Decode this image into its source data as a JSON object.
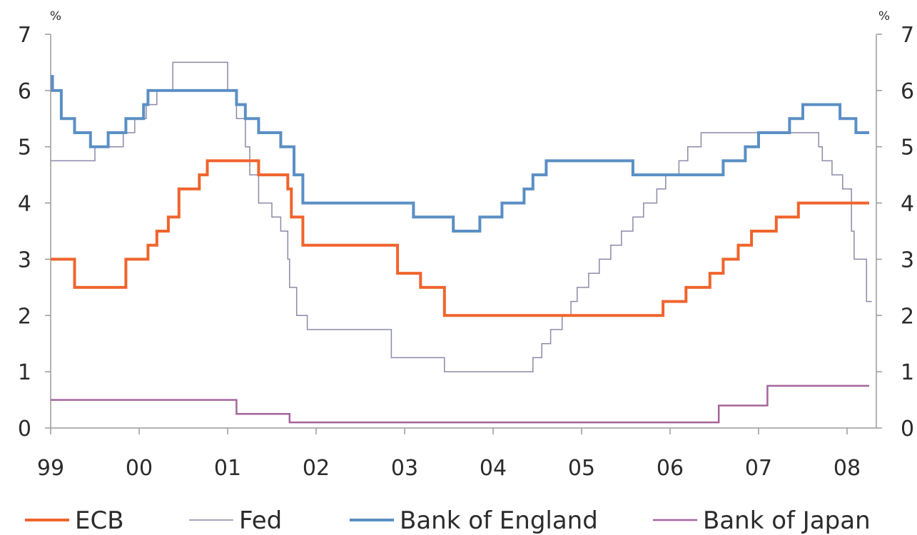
{
  "chart_data": {
    "type": "line",
    "title": "",
    "y_unit_left": "%",
    "y_unit_right": "%",
    "x_ticks": [
      "99",
      "00",
      "01",
      "02",
      "03",
      "04",
      "05",
      "06",
      "07",
      "08"
    ],
    "x_range": [
      1999,
      2008.3
    ],
    "ylim": [
      0,
      7
    ],
    "y_ticks": [
      0,
      1,
      2,
      3,
      4,
      5,
      6,
      7
    ],
    "grid": false,
    "legend_position": "bottom",
    "series": [
      {
        "name": "ECB",
        "color": "#f0642d",
        "points": [
          [
            1999.0,
            3.0
          ],
          [
            1999.27,
            2.5
          ],
          [
            1999.85,
            3.0
          ],
          [
            2000.1,
            3.25
          ],
          [
            2000.2,
            3.5
          ],
          [
            2000.33,
            3.75
          ],
          [
            2000.45,
            4.25
          ],
          [
            2000.68,
            4.5
          ],
          [
            2000.77,
            4.75
          ],
          [
            2001.35,
            4.5
          ],
          [
            2001.68,
            4.25
          ],
          [
            2001.72,
            3.75
          ],
          [
            2001.85,
            3.25
          ],
          [
            2002.92,
            2.75
          ],
          [
            2003.18,
            2.5
          ],
          [
            2003.45,
            2.0
          ],
          [
            2005.92,
            2.25
          ],
          [
            2006.18,
            2.5
          ],
          [
            2006.45,
            2.75
          ],
          [
            2006.6,
            3.0
          ],
          [
            2006.77,
            3.25
          ],
          [
            2006.92,
            3.5
          ],
          [
            2007.2,
            3.75
          ],
          [
            2007.45,
            4.0
          ],
          [
            2008.25,
            4.0
          ]
        ]
      },
      {
        "name": "Fed",
        "color": "#8a8aa8",
        "points": [
          [
            1999.0,
            4.75
          ],
          [
            1999.5,
            5.0
          ],
          [
            1999.82,
            5.25
          ],
          [
            1999.95,
            5.5
          ],
          [
            2000.08,
            5.75
          ],
          [
            2000.2,
            6.0
          ],
          [
            2000.38,
            6.5
          ],
          [
            2001.0,
            6.0
          ],
          [
            2001.1,
            5.5
          ],
          [
            2001.2,
            5.0
          ],
          [
            2001.25,
            4.5
          ],
          [
            2001.35,
            4.0
          ],
          [
            2001.5,
            3.75
          ],
          [
            2001.6,
            3.5
          ],
          [
            2001.68,
            3.0
          ],
          [
            2001.7,
            2.5
          ],
          [
            2001.78,
            2.0
          ],
          [
            2001.9,
            1.75
          ],
          [
            2002.85,
            1.25
          ],
          [
            2003.45,
            1.0
          ],
          [
            2004.45,
            1.25
          ],
          [
            2004.55,
            1.5
          ],
          [
            2004.65,
            1.75
          ],
          [
            2004.78,
            2.0
          ],
          [
            2004.88,
            2.25
          ],
          [
            2004.95,
            2.5
          ],
          [
            2005.08,
            2.75
          ],
          [
            2005.2,
            3.0
          ],
          [
            2005.33,
            3.25
          ],
          [
            2005.45,
            3.5
          ],
          [
            2005.58,
            3.75
          ],
          [
            2005.7,
            4.0
          ],
          [
            2005.85,
            4.25
          ],
          [
            2005.95,
            4.5
          ],
          [
            2006.1,
            4.75
          ],
          [
            2006.2,
            5.0
          ],
          [
            2006.35,
            5.25
          ],
          [
            2007.68,
            5.0
          ],
          [
            2007.72,
            4.75
          ],
          [
            2007.83,
            4.5
          ],
          [
            2007.95,
            4.25
          ],
          [
            2008.05,
            3.5
          ],
          [
            2008.08,
            3.0
          ],
          [
            2008.22,
            2.25
          ],
          [
            2008.28,
            2.25
          ]
        ]
      },
      {
        "name": "Bank of England",
        "color": "#5a8fc4",
        "points": [
          [
            1999.0,
            6.25
          ],
          [
            1999.02,
            6.0
          ],
          [
            1999.12,
            5.5
          ],
          [
            1999.27,
            5.25
          ],
          [
            1999.45,
            5.0
          ],
          [
            1999.65,
            5.25
          ],
          [
            1999.85,
            5.5
          ],
          [
            2000.05,
            5.75
          ],
          [
            2000.1,
            6.0
          ],
          [
            2001.1,
            5.75
          ],
          [
            2001.2,
            5.5
          ],
          [
            2001.35,
            5.25
          ],
          [
            2001.6,
            5.0
          ],
          [
            2001.75,
            4.5
          ],
          [
            2001.85,
            4.0
          ],
          [
            2003.1,
            3.75
          ],
          [
            2003.55,
            3.5
          ],
          [
            2003.85,
            3.75
          ],
          [
            2004.1,
            4.0
          ],
          [
            2004.35,
            4.25
          ],
          [
            2004.45,
            4.5
          ],
          [
            2004.6,
            4.75
          ],
          [
            2005.58,
            4.5
          ],
          [
            2006.6,
            4.75
          ],
          [
            2006.85,
            5.0
          ],
          [
            2007.0,
            5.25
          ],
          [
            2007.35,
            5.5
          ],
          [
            2007.5,
            5.75
          ],
          [
            2007.92,
            5.5
          ],
          [
            2008.1,
            5.25
          ],
          [
            2008.25,
            5.25
          ]
        ]
      },
      {
        "name": "Bank of Japan",
        "color": "#a5649b",
        "points": [
          [
            1999.0,
            0.5
          ],
          [
            2001.1,
            0.25
          ],
          [
            2001.7,
            0.1
          ],
          [
            2006.55,
            0.4
          ],
          [
            2007.1,
            0.75
          ],
          [
            2008.25,
            0.75
          ]
        ]
      }
    ]
  }
}
